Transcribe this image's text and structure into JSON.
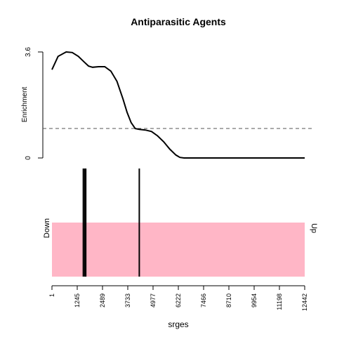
{
  "chart_data": [
    {
      "type": "line",
      "title": "Antiparasitic Agents",
      "ylabel": "Enrichment",
      "y_tick_labels": [
        "0",
        "3.6"
      ],
      "ylim": [
        0,
        3.6
      ],
      "xlim": [
        1,
        12442
      ],
      "reference_line": {
        "y": 1.0,
        "style": "dashed"
      },
      "series": [
        {
          "x": [
            1,
            300,
            700,
            1000,
            1300,
            1600,
            1800,
            2000,
            2300,
            2600,
            2900,
            3200,
            3500,
            3700,
            3900,
            4100,
            4300,
            4600,
            4900,
            5200,
            5500,
            5800,
            6100,
            6300,
            6500,
            6800,
            7000,
            8000,
            9000,
            10000,
            11000,
            12442
          ],
          "y": [
            3.0,
            3.45,
            3.6,
            3.58,
            3.45,
            3.25,
            3.12,
            3.08,
            3.1,
            3.1,
            2.95,
            2.6,
            2.0,
            1.55,
            1.2,
            1.0,
            0.97,
            0.95,
            0.9,
            0.75,
            0.55,
            0.3,
            0.1,
            0.02,
            0.0,
            0.0,
            0.0,
            0.0,
            0.0,
            0.0,
            0.0,
            0.0
          ]
        }
      ],
      "grid": false
    },
    {
      "type": "barcode",
      "xlabel": "srges",
      "left_label": "Down",
      "right_label": "Up",
      "band_color": "#ffb6c6",
      "hits": [
        1545,
        1615,
        1665,
        4300
      ],
      "x_ticks": [
        "1",
        "1245",
        "2489",
        "3733",
        "4977",
        "6222",
        "7466",
        "8710",
        "9954",
        "11198",
        "12442"
      ],
      "x_tick_values": [
        1,
        1245,
        2489,
        3733,
        4977,
        6222,
        7466,
        8710,
        9954,
        11198,
        12442
      ]
    }
  ]
}
